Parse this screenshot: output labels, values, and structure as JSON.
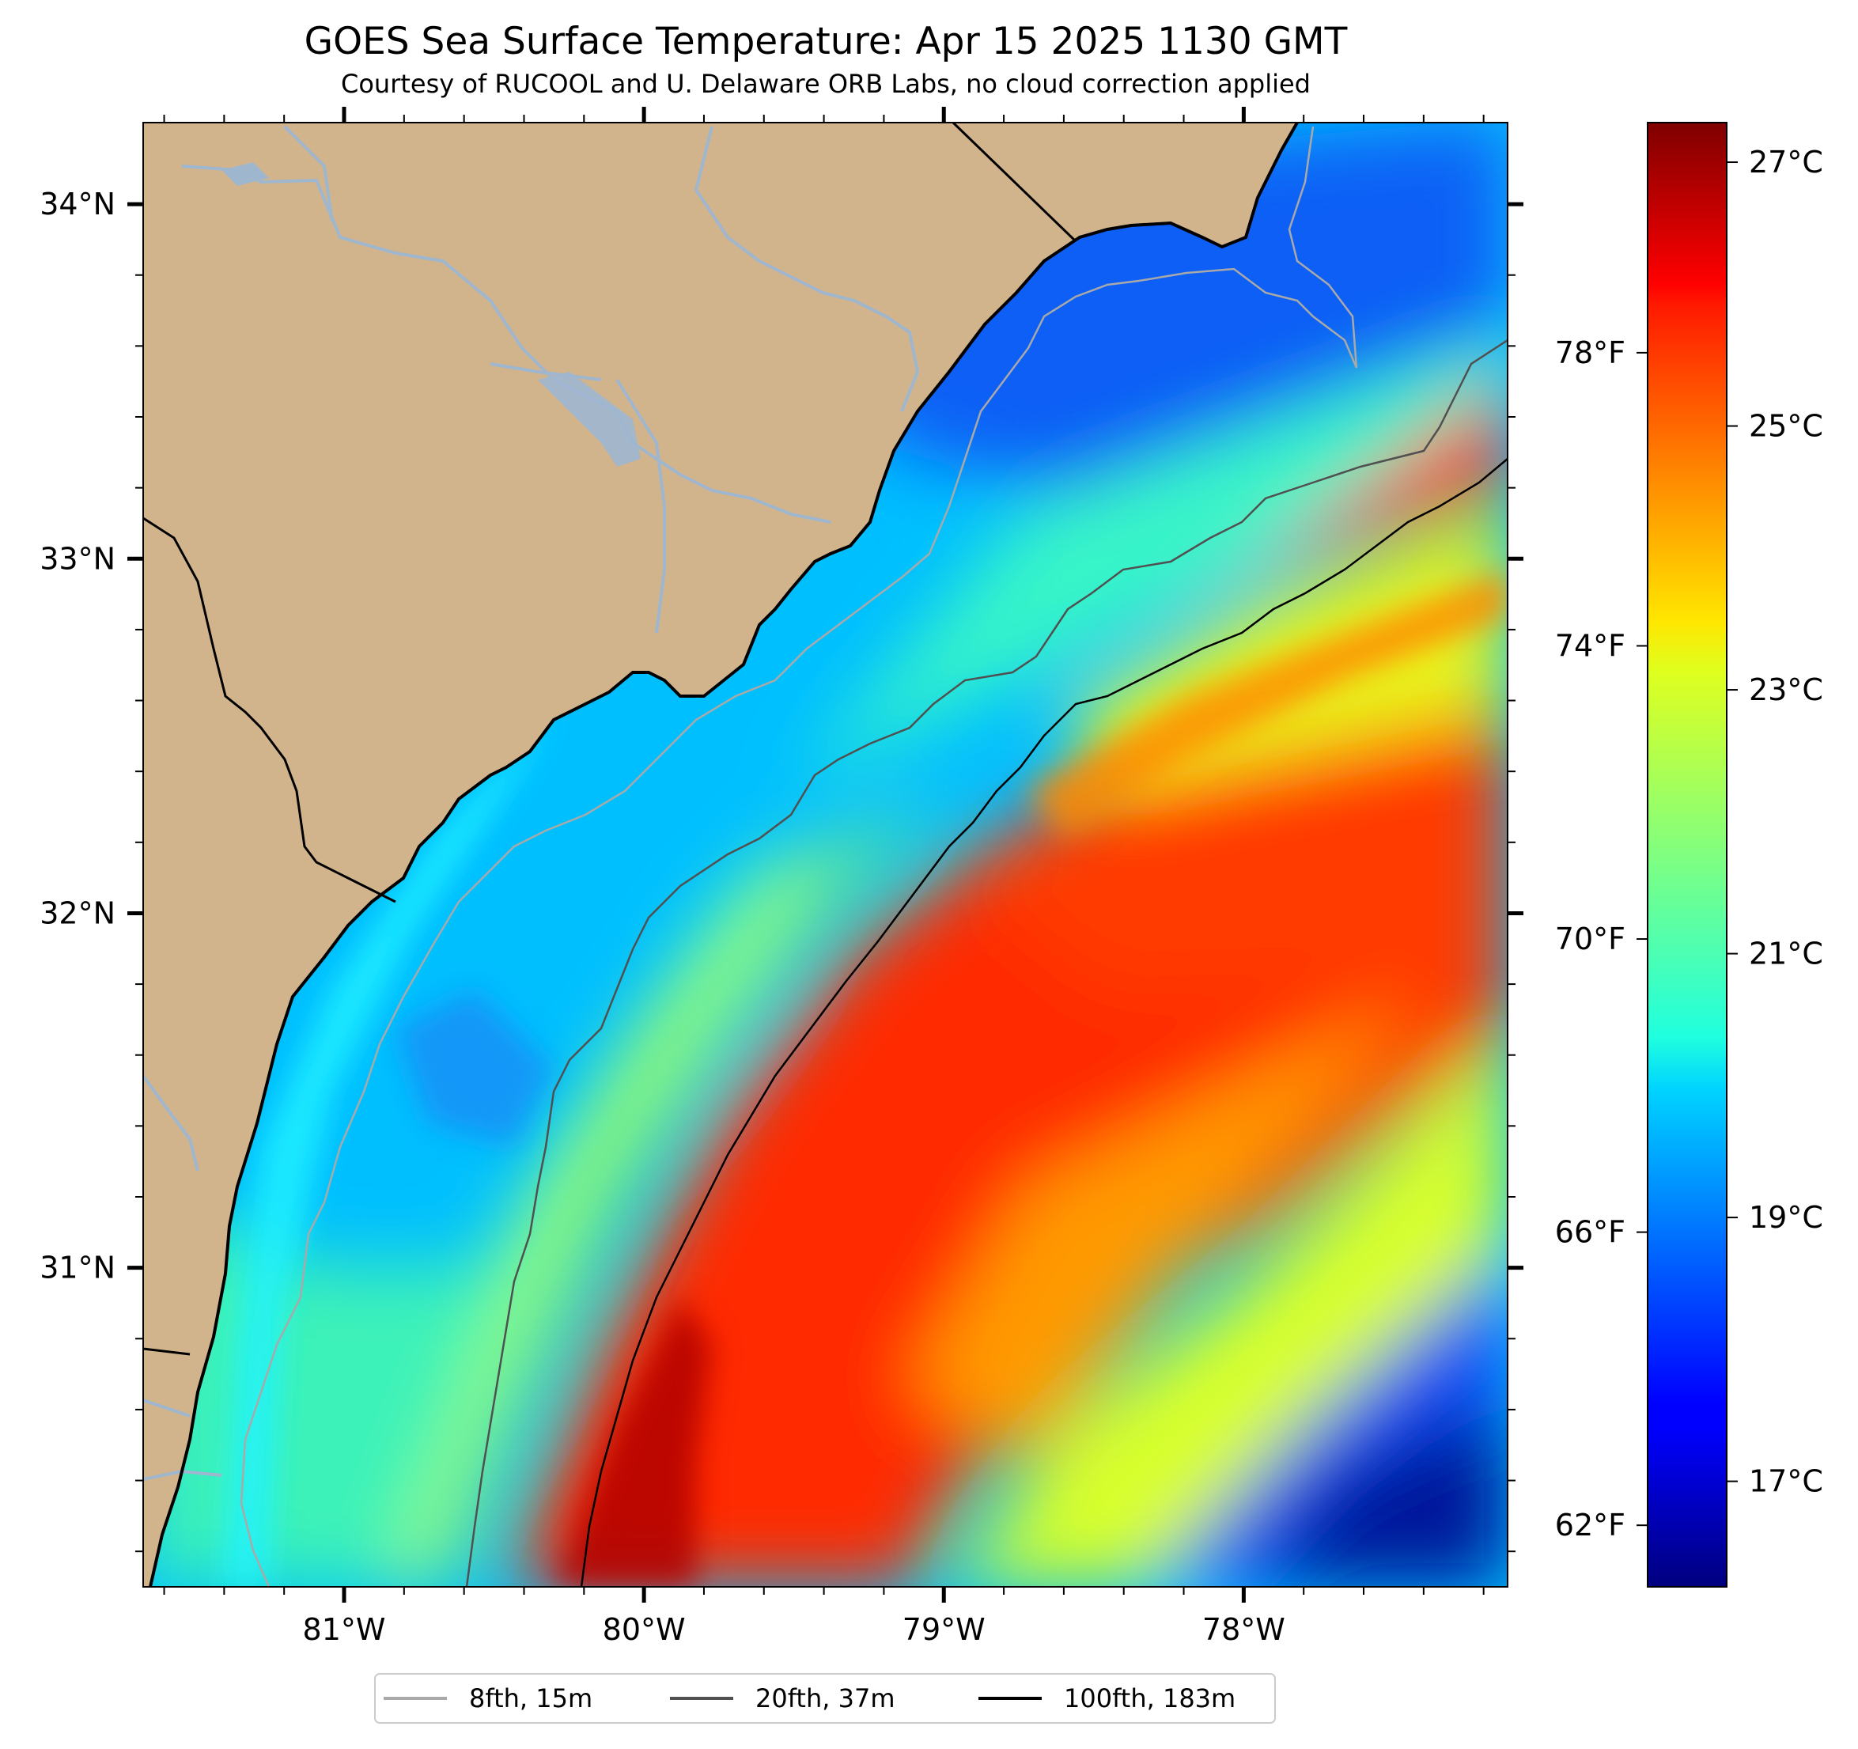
{
  "title": "GOES Sea Surface Temperature: Apr 15 2025 1130 GMT",
  "subtitle": "Courtesy of RUCOOL and U. Delaware ORB Labs, no cloud correction applied",
  "map": {
    "lon_range": [
      -81.67,
      -77.12
    ],
    "lat_range": [
      30.1,
      34.23
    ],
    "lon_ticks": [
      {
        "value": -81,
        "label": "81°W"
      },
      {
        "value": -80,
        "label": "80°W"
      },
      {
        "value": -79,
        "label": "79°W"
      },
      {
        "value": -78,
        "label": "78°W"
      }
    ],
    "lat_ticks": [
      {
        "value": 34,
        "label": "34°N"
      },
      {
        "value": 33,
        "label": "33°N"
      },
      {
        "value": 32,
        "label": "32°N"
      },
      {
        "value": 31,
        "label": "31°N"
      }
    ],
    "colors": {
      "land": "#d2b48c",
      "coast": "#000000",
      "rivers": "#9fb6cf"
    }
  },
  "colorbar": {
    "colormap": "jet",
    "range_c": [
      16.2,
      27.3
    ],
    "celsius_ticks": [
      {
        "value": 27,
        "label": "27°C"
      },
      {
        "value": 25,
        "label": "25°C"
      },
      {
        "value": 23,
        "label": "23°C"
      },
      {
        "value": 21,
        "label": "21°C"
      },
      {
        "value": 19,
        "label": "19°C"
      },
      {
        "value": 17,
        "label": "17°C"
      }
    ],
    "fahrenheit_ticks": [
      {
        "value": 78,
        "label": "78°F"
      },
      {
        "value": 74,
        "label": "74°F"
      },
      {
        "value": 70,
        "label": "70°F"
      },
      {
        "value": 66,
        "label": "66°F"
      },
      {
        "value": 62,
        "label": "62°F"
      }
    ]
  },
  "legend": {
    "placement": "bottom-center",
    "entries": [
      {
        "label": "8fth, 15m",
        "color": "#a9a9a9"
      },
      {
        "label": "20fth, 37m",
        "color": "#505050"
      },
      {
        "label": "100fth, 183m",
        "color": "#000000"
      }
    ]
  }
}
